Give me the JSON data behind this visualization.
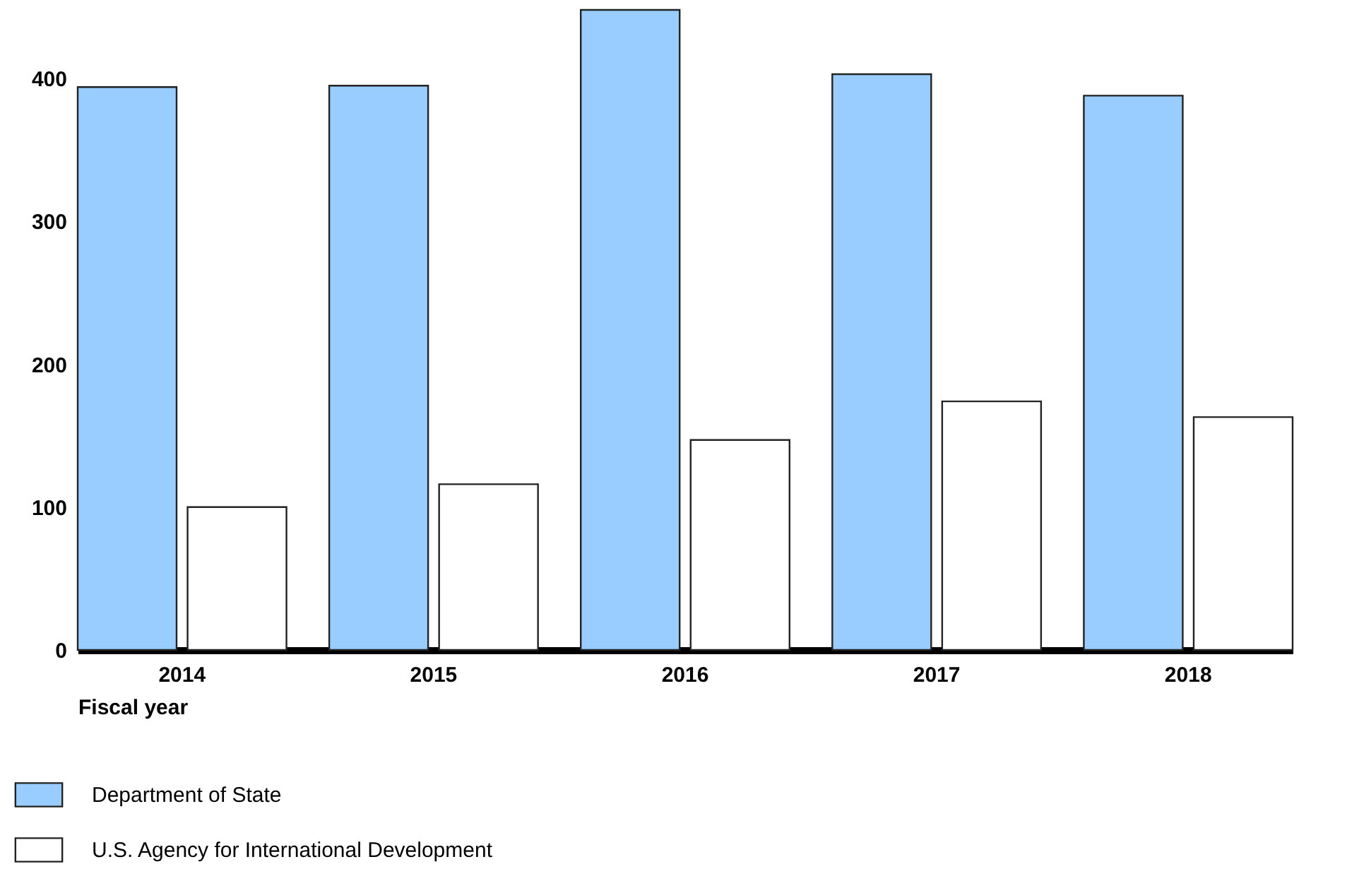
{
  "chart_data": {
    "type": "bar",
    "xlabel": "Fiscal year",
    "categories": [
      "2014",
      "2015",
      "2016",
      "2017",
      "2018"
    ],
    "series": [
      {
        "name": "Department of State",
        "color": "#99ccff",
        "values": [
          394,
          395,
          448,
          403,
          388
        ]
      },
      {
        "name": "U.S. Agency for International Development",
        "color": "#ffffff",
        "values": [
          100,
          116,
          147,
          174,
          163
        ]
      }
    ],
    "ylim": [
      0,
      450
    ],
    "yticks": [
      0,
      100,
      200,
      300,
      400
    ],
    "grid": false,
    "legend": "bottom left"
  }
}
